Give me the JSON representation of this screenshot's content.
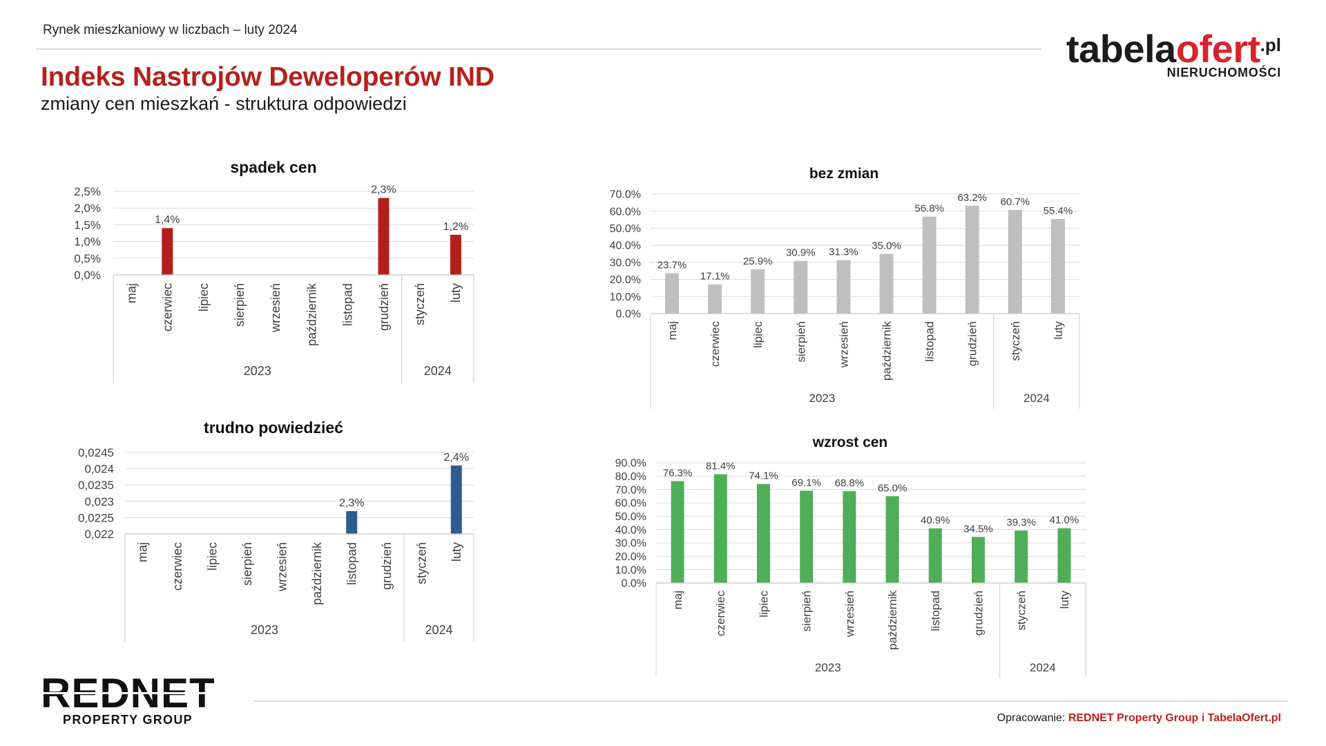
{
  "header": {
    "report_name": "Rynek mieszkaniowy w liczbach – luty 2024",
    "title": "Indeks Nastrojów Deweloperów IND",
    "subtitle": "zmiany cen mieszkań - struktura odpowiedzi"
  },
  "logo_tabelaofert": {
    "part_1": "tabela",
    "part_2": "ofert",
    "part_3": ".pl",
    "tagline": "NIERUCHOMOŚCI"
  },
  "logo_rednet": {
    "name": "REDNET",
    "tagline": "PROPERTY GROUP"
  },
  "footer": {
    "prefix": "Opracowanie:",
    "credit": "REDNET Property Group i TabelaOfert.pl"
  },
  "colors": {
    "brand_red": "#b5211d"
  },
  "chart_data": [
    {
      "type": "bar",
      "title": "spadek cen",
      "categories": [
        "maj",
        "czerwiec",
        "lipiec",
        "sierpień",
        "wrzesień",
        "październik",
        "listopad",
        "grudzień",
        "styczeń",
        "luty"
      ],
      "category_years": [
        "2023",
        "2023",
        "2023",
        "2023",
        "2023",
        "2023",
        "2023",
        "2023",
        "2024",
        "2024"
      ],
      "values": [
        null,
        1.4,
        null,
        null,
        null,
        null,
        null,
        2.3,
        null,
        1.2
      ],
      "data_labels": [
        null,
        "1,4%",
        null,
        null,
        null,
        null,
        null,
        "2,3%",
        null,
        "1,2%"
      ],
      "yticks": [
        0,
        0.5,
        1.0,
        1.5,
        2.0,
        2.5
      ],
      "ytick_labels": [
        "0,0%",
        "0,5%",
        "1,0%",
        "1,5%",
        "2,0%",
        "2,5%"
      ],
      "ylim": [
        0,
        2.5
      ],
      "grid": true,
      "legend": "none",
      "color": "#b3201c"
    },
    {
      "type": "bar",
      "title": "bez zmian",
      "categories": [
        "maj",
        "czerwiec",
        "lipiec",
        "sierpień",
        "wrzesień",
        "październik",
        "listopad",
        "grudzień",
        "styczeń",
        "luty"
      ],
      "category_years": [
        "2023",
        "2023",
        "2023",
        "2023",
        "2023",
        "2023",
        "2023",
        "2023",
        "2024",
        "2024"
      ],
      "values": [
        23.7,
        17.1,
        25.9,
        30.9,
        31.3,
        35.0,
        56.8,
        63.2,
        60.7,
        55.4
      ],
      "data_labels": [
        "23.7%",
        "17.1%",
        "25.9%",
        "30.9%",
        "31.3%",
        "35.0%",
        "56.8%",
        "63.2%",
        "60.7%",
        "55.4%"
      ],
      "yticks": [
        0,
        10,
        20,
        30,
        40,
        50,
        60,
        70
      ],
      "ytick_labels": [
        "0.0%",
        "10.0%",
        "20.0%",
        "30.0%",
        "40.0%",
        "50.0%",
        "60.0%",
        "70.0%"
      ],
      "ylim": [
        0,
        70
      ],
      "grid": true,
      "legend": "none",
      "color": "#bfbfbf"
    },
    {
      "type": "bar",
      "title": "trudno powiedzieć",
      "categories": [
        "maj",
        "czerwiec",
        "lipiec",
        "sierpień",
        "wrzesień",
        "październik",
        "listopad",
        "grudzień",
        "styczeń",
        "luty"
      ],
      "category_years": [
        "2023",
        "2023",
        "2023",
        "2023",
        "2023",
        "2023",
        "2023",
        "2023",
        "2024",
        "2024"
      ],
      "values": [
        null,
        null,
        null,
        null,
        null,
        null,
        0.0227,
        null,
        null,
        0.0241
      ],
      "data_labels": [
        null,
        null,
        null,
        null,
        null,
        null,
        "2,3%",
        null,
        null,
        "2,4%"
      ],
      "yticks": [
        0.022,
        0.0225,
        0.023,
        0.0235,
        0.024,
        0.0245
      ],
      "ytick_labels": [
        "0,022",
        "0,0225",
        "0,023",
        "0,0235",
        "0,024",
        "0,0245"
      ],
      "ylim": [
        0.022,
        0.0245
      ],
      "grid": true,
      "legend": "none",
      "color": "#2e5c8f"
    },
    {
      "type": "bar",
      "title": "wzrost cen",
      "categories": [
        "maj",
        "czerwiec",
        "lipiec",
        "sierpień",
        "wrzesień",
        "październik",
        "listopad",
        "grudzień",
        "styczeń",
        "luty"
      ],
      "category_years": [
        "2023",
        "2023",
        "2023",
        "2023",
        "2023",
        "2023",
        "2023",
        "2023",
        "2024",
        "2024"
      ],
      "values": [
        76.3,
        81.4,
        74.1,
        69.1,
        68.8,
        65.0,
        40.9,
        34.5,
        39.3,
        41.0
      ],
      "data_labels": [
        "76.3%",
        "81.4%",
        "74.1%",
        "69.1%",
        "68.8%",
        "65.0%",
        "40.9%",
        "34.5%",
        "39.3%",
        "41.0%"
      ],
      "yticks": [
        0,
        10,
        20,
        30,
        40,
        50,
        60,
        70,
        80,
        90
      ],
      "ytick_labels": [
        "0.0%",
        "10.0%",
        "20.0%",
        "30.0%",
        "40.0%",
        "50.0%",
        "60.0%",
        "70.0%",
        "80.0%",
        "90.0%"
      ],
      "ylim": [
        0,
        90
      ],
      "grid": true,
      "legend": "none",
      "color": "#4fae57"
    }
  ]
}
